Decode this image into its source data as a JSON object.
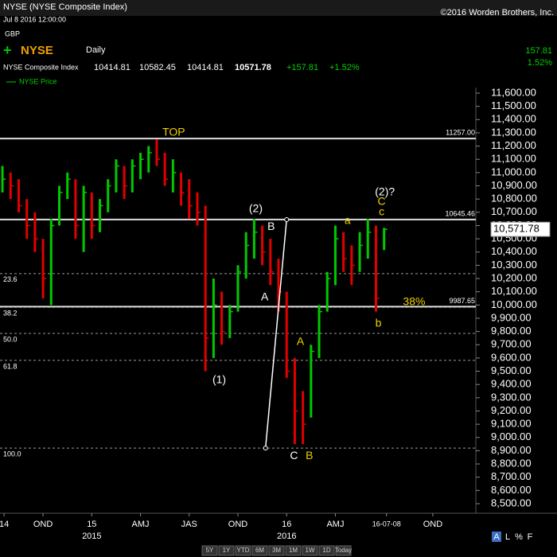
{
  "header": {
    "title": "NYSE (NYSE Composite Index)",
    "date": "Jul 8 2016 12:00:00",
    "copyright": "©2016 Worden Brothers, Inc.",
    "currency": "GBP",
    "symbol": "NYSE",
    "period": "Daily",
    "name": "NYSE Composite Index",
    "open": "10414.81",
    "high": "10582.45",
    "low": "10414.81",
    "close": "10571.78",
    "change": "+157.81",
    "change_pct": "+1.52%",
    "legend": "NYSE Price",
    "side_change": "157.81",
    "side_change_pct": "1.52%"
  },
  "buttons": [
    "5Y",
    "1Y",
    "YTD",
    "6M",
    "3M",
    "1M",
    "1W",
    "1D",
    "Today"
  ],
  "scale_buttons": [
    "A",
    "L",
    "%",
    "F"
  ],
  "chart_data": {
    "type": "ohlc",
    "up_color": "#00c800",
    "down_color": "#e00000",
    "x": [
      -11,
      -10,
      -9,
      -8,
      -7,
      -6,
      -5,
      -4,
      -3,
      -2,
      -1,
      0,
      1,
      2,
      3,
      4,
      5,
      6,
      7,
      8,
      9,
      10,
      11,
      12,
      13,
      14,
      15,
      16,
      17,
      18,
      19,
      20,
      21,
      22,
      23,
      24,
      25,
      26,
      27,
      28,
      29,
      30,
      31,
      32,
      33,
      34,
      35,
      36
    ],
    "high": [
      11050,
      11000,
      10950,
      10800,
      10700,
      10500,
      10650,
      10900,
      11000,
      10950,
      10900,
      10850,
      10800,
      10950,
      11100,
      11050,
      11100,
      11150,
      11200,
      11250,
      11150,
      11100,
      11000,
      10950,
      10850,
      10750,
      10200,
      10100,
      10000,
      10300,
      10550,
      10650,
      10600,
      10500,
      10350,
      10100,
      9600,
      9350,
      9700,
      10000,
      10250,
      10600,
      10550,
      10450,
      10550,
      10650,
      10600,
      10582.45
    ],
    "low": [
      10850,
      10800,
      10700,
      10500,
      10400,
      10050,
      10000,
      10600,
      10800,
      10500,
      10400,
      10500,
      10550,
      10700,
      10850,
      10800,
      10850,
      10950,
      11000,
      11050,
      10900,
      10850,
      10750,
      10650,
      10600,
      9500,
      9600,
      9700,
      9750,
      9950,
      10200,
      10350,
      10300,
      10150,
      9950,
      9450,
      8950,
      8950,
      9150,
      9600,
      9950,
      10150,
      10250,
      10150,
      10250,
      10350,
      9950,
      10414.81
    ],
    "close": [
      10950,
      10900,
      10750,
      10600,
      10500,
      10200,
      10600,
      10850,
      10950,
      10600,
      10850,
      10600,
      10750,
      10900,
      11050,
      10900,
      11050,
      11100,
      11150,
      11100,
      10950,
      11000,
      10850,
      10750,
      10700,
      9750,
      10000,
      9800,
      9950,
      10250,
      10450,
      10550,
      10400,
      10250,
      10100,
      9500,
      9200,
      9100,
      9650,
      9950,
      10200,
      10500,
      10350,
      10300,
      10450,
      10550,
      10050,
      10571.78
    ],
    "last_price_label": "10,571.78",
    "xlim": [
      -11.3,
      47.3
    ],
    "xticks": [
      {
        "value": -10.8,
        "label": "14"
      },
      {
        "value": -6,
        "label": "OND"
      },
      {
        "value": 0,
        "label": "15"
      },
      {
        "value": 6,
        "label": "AMJ"
      },
      {
        "value": 12,
        "label": "JAS"
      },
      {
        "value": 18,
        "label": "OND"
      },
      {
        "value": 24,
        "label": "16"
      },
      {
        "value": 30,
        "label": "AMJ"
      },
      {
        "value": 36.3,
        "label": "16-07-08"
      },
      {
        "value": 42,
        "label": "OND"
      }
    ],
    "year_labels": [
      {
        "value": 0,
        "label": "2015"
      },
      {
        "value": 24,
        "label": "2016"
      }
    ],
    "ylim": [
      8500,
      11600
    ],
    "yticks": [
      {
        "value": 11600,
        "label": "11,600.00"
      },
      {
        "value": 11500,
        "label": "11,500.00"
      },
      {
        "value": 11400,
        "label": "11,400.00"
      },
      {
        "value": 11300,
        "label": "11,300.00"
      },
      {
        "value": 11200,
        "label": "11,200.00"
      },
      {
        "value": 11100,
        "label": "11,100.00"
      },
      {
        "value": 11000,
        "label": "11,000.00"
      },
      {
        "value": 10900,
        "label": "10,900.00"
      },
      {
        "value": 10800,
        "label": "10,800.00"
      },
      {
        "value": 10700,
        "label": "10,700.00"
      },
      {
        "value": 10600,
        "label": "10,600.00"
      },
      {
        "value": 10500,
        "label": "10,500.00"
      },
      {
        "value": 10400,
        "label": "10,400.00"
      },
      {
        "value": 10300,
        "label": "10,300.00"
      },
      {
        "value": 10200,
        "label": "10,200.00"
      },
      {
        "value": 10100,
        "label": "10,100.00"
      },
      {
        "value": 10000,
        "label": "10,000.00"
      },
      {
        "value": 9900,
        "label": "9,900.00"
      },
      {
        "value": 9800,
        "label": "9,800.00"
      },
      {
        "value": 9700,
        "label": "9,700.00"
      },
      {
        "value": 9600,
        "label": "9,600.00"
      },
      {
        "value": 9500,
        "label": "9,500.00"
      },
      {
        "value": 9400,
        "label": "9,400.00"
      },
      {
        "value": 9300,
        "label": "9,300.00"
      },
      {
        "value": 9200,
        "label": "9,200.00"
      },
      {
        "value": 9100,
        "label": "9,100.00"
      },
      {
        "value": 9000,
        "label": "9,000.00"
      },
      {
        "value": 8900,
        "label": "8,900.00"
      },
      {
        "value": 8800,
        "label": "8,800.00"
      },
      {
        "value": 8700,
        "label": "8,700.00"
      },
      {
        "value": 8600,
        "label": "8,600.00"
      },
      {
        "value": 8500,
        "label": "8,500.00"
      }
    ],
    "levels": [
      {
        "value": 11257,
        "label": "11257.00"
      },
      {
        "value": 10645.46,
        "label": "10645.46"
      },
      {
        "value": 9987.65,
        "label": "9987.65"
      }
    ],
    "fib_levels": [
      {
        "value": 10237,
        "label": "23.6"
      },
      {
        "value": 9983,
        "label": "38.2"
      },
      {
        "value": 9786,
        "label": "50.0"
      },
      {
        "value": 9582,
        "label": "61.8"
      },
      {
        "value": 8920,
        "label": "100.0"
      }
    ],
    "trendline": {
      "x": [
        21.4,
        24.0
      ],
      "y": [
        8920,
        10645
      ]
    },
    "annotations": [
      {
        "text": "TOP",
        "x": 10.1,
        "y": 11300,
        "color": "#f0d000"
      },
      {
        "text": "(2)",
        "x": 20.2,
        "y": 10723,
        "color": "#ffffff"
      },
      {
        "text": "B",
        "x": 22.1,
        "y": 10590,
        "color": "#ffffff"
      },
      {
        "text": "A",
        "x": 21.3,
        "y": 10057,
        "color": "#ffffff"
      },
      {
        "text": "(1)",
        "x": 15.7,
        "y": 9432,
        "color": "#ffffff"
      },
      {
        "text": "A",
        "x": 25.7,
        "y": 9720,
        "color": "#f0d000"
      },
      {
        "text": "C",
        "x": 24.9,
        "y": 8860,
        "color": "#ffffff"
      },
      {
        "text": "B",
        "x": 26.8,
        "y": 8860,
        "color": "#f0d000"
      },
      {
        "text": "a",
        "x": 31.5,
        "y": 10633,
        "color": "#f0d000"
      },
      {
        "text": "(2)?",
        "x": 36.1,
        "y": 10850,
        "color": "#ffffff"
      },
      {
        "text": "C",
        "x": 35.7,
        "y": 10779,
        "color": "#f0d000"
      },
      {
        "text": "c",
        "x": 35.7,
        "y": 10700,
        "color": "#f0d000"
      },
      {
        "text": "38%",
        "x": 39.7,
        "y": 10020,
        "color": "#f0d000"
      },
      {
        "text": "b",
        "x": 35.3,
        "y": 9858,
        "color": "#f0d000"
      }
    ]
  }
}
